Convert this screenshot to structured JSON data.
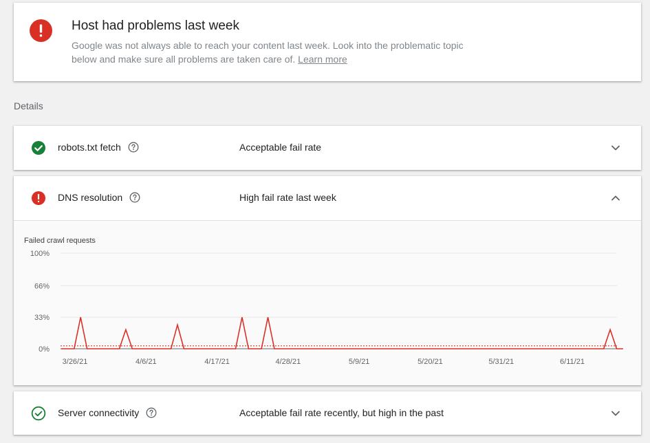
{
  "alert": {
    "icon": "error-icon",
    "title": "Host had problems last week",
    "description": "Google was not always able to reach your content last week. Look into the problematic topic below and make sure all problems are taken care of.",
    "link": "Learn more",
    "color": "#d93025"
  },
  "details_label": "Details",
  "rows": {
    "robots": {
      "name": "robots.txt fetch",
      "status": "Acceptable fail rate",
      "icon": "check-circle-icon",
      "expanded": false
    },
    "dns": {
      "name": "DNS resolution",
      "status": "High fail rate last week",
      "icon": "error-icon",
      "expanded": true
    },
    "server": {
      "name": "Server connectivity",
      "status": "Acceptable fail rate recently, but high in the past",
      "icon": "check-circle-outline-icon",
      "expanded": false
    }
  },
  "colors": {
    "success": "#188038",
    "error": "#d93025",
    "line": "#d93025"
  },
  "chart_data": {
    "type": "line",
    "title": "Failed crawl requests",
    "y_ticks": [
      "100%",
      "66%",
      "33%",
      "0%"
    ],
    "x_ticks": [
      "3/26/21",
      "4/6/21",
      "4/17/21",
      "4/28/21",
      "5/9/21",
      "5/20/21",
      "5/31/21",
      "6/11/21"
    ],
    "ylim": [
      0,
      100
    ],
    "grid": true,
    "threshold": 3,
    "series": [
      {
        "x": [
          "3/26/21",
          "3/28/21",
          "3/29/21",
          "3/30/21",
          "4/4/21",
          "4/5/21",
          "4/6/21",
          "4/12/21",
          "4/13/21",
          "4/14/21",
          "4/22/21",
          "4/23/21",
          "4/24/21",
          "4/26/21",
          "4/27/21",
          "4/28/21",
          "6/18/21",
          "6/19/21",
          "6/20/21",
          "6/21/21"
        ],
        "y": [
          0,
          0,
          33,
          0,
          0,
          20,
          0,
          0,
          25,
          0,
          0,
          33,
          0,
          0,
          33,
          0,
          0,
          20,
          0,
          0
        ]
      }
    ]
  }
}
